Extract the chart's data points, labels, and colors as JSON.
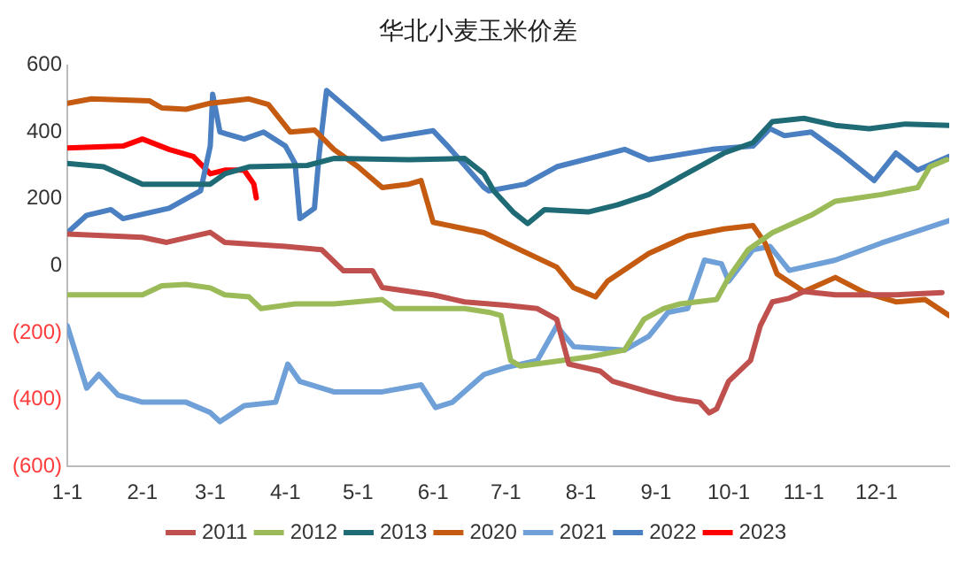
{
  "chart_data": {
    "type": "line",
    "title": "华北小麦玉米价差",
    "xlim": [
      "--01-01",
      "--12-31"
    ],
    "xticks": [
      {
        "value": "--01-01",
        "label": "1-1"
      },
      {
        "value": "--02-01",
        "label": "2-1"
      },
      {
        "value": "--03-01",
        "label": "3-1"
      },
      {
        "value": "--04-01",
        "label": "4-1"
      },
      {
        "value": "--05-01",
        "label": "5-1"
      },
      {
        "value": "--06-01",
        "label": "6-1"
      },
      {
        "value": "--07-01",
        "label": "7-1"
      },
      {
        "value": "--08-01",
        "label": "8-1"
      },
      {
        "value": "--09-01",
        "label": "9-1"
      },
      {
        "value": "--10-01",
        "label": "10-1"
      },
      {
        "value": "--11-01",
        "label": "11-1"
      },
      {
        "value": "--12-01",
        "label": "12-1"
      }
    ],
    "ylim": [
      -600,
      600
    ],
    "yticks": [
      {
        "value": -600,
        "label": "(600)"
      },
      {
        "value": -400,
        "label": "(400)"
      },
      {
        "value": -200,
        "label": "(200)"
      },
      0,
      200,
      400,
      600
    ],
    "grid": false,
    "legend": "bottom",
    "marker": "none",
    "line_style": "solid",
    "series": [
      {
        "name": "2011",
        "color": "#c0504d",
        "x": [
          "--01-01",
          "--02-01",
          "--02-11",
          "--03-01",
          "--03-07",
          "--04-01",
          "--04-16",
          "--04-25",
          "--05-07",
          "--05-11",
          "--06-01",
          "--06-14",
          "--07-01",
          "--07-14",
          "--07-22",
          "--07-27",
          "--08-09",
          "--08-14",
          "--08-29",
          "--09-09",
          "--09-19",
          "--09-23",
          "--09-26",
          "--10-01",
          "--10-10",
          "--10-14",
          "--10-19",
          "--10-26",
          "--11-01",
          "--11-14",
          "--12-09",
          "--12-28"
        ],
        "values": [
          95,
          85,
          70,
          100,
          70,
          58,
          48,
          -15,
          -15,
          -65,
          -87,
          -108,
          -118,
          -128,
          -160,
          -294,
          -315,
          -345,
          -377,
          -397,
          -408,
          -440,
          -428,
          -345,
          -283,
          -180,
          -108,
          -97,
          -77,
          -87,
          -87,
          -80
        ]
      },
      {
        "name": "2012",
        "color": "#9bbb59",
        "x": [
          "--01-01",
          "--02-01",
          "--02-09",
          "--02-19",
          "--03-01",
          "--03-07",
          "--03-17",
          "--03-22",
          "--04-05",
          "--04-21",
          "--05-11",
          "--05-16",
          "--06-14",
          "--06-24",
          "--06-29",
          "--07-03",
          "--07-07",
          "--08-04",
          "--08-19",
          "--08-27",
          "--09-04",
          "--09-11",
          "--09-26",
          "--10-01",
          "--10-09",
          "--10-19",
          "--11-04",
          "--11-14",
          "--12-03",
          "--12-18",
          "--12-23",
          "--12-30"
        ],
        "values": [
          -87,
          -87,
          -60,
          -56,
          -66,
          -87,
          -93,
          -128,
          -114,
          -114,
          -101,
          -128,
          -128,
          -139,
          -149,
          -283,
          -300,
          -273,
          -252,
          -160,
          -128,
          -114,
          -101,
          -35,
          48,
          99,
          151,
          193,
          213,
          234,
          296,
          317
        ]
      },
      {
        "name": "2013",
        "color": "#1f6b75",
        "x": [
          "--01-01",
          "--01-16",
          "--02-01",
          "--03-01",
          "--03-07",
          "--03-17",
          "--04-10",
          "--04-21",
          "--05-22",
          "--06-14",
          "--06-22",
          "--06-26",
          "--07-04",
          "--07-10",
          "--07-17",
          "--08-04",
          "--08-16",
          "--08-29",
          "--09-11",
          "--09-29",
          "--10-11",
          "--10-19",
          "--11-01",
          "--11-14",
          "--11-28",
          "--12-13",
          "--12-31"
        ],
        "values": [
          306,
          296,
          244,
          244,
          275,
          296,
          300,
          321,
          317,
          321,
          275,
          224,
          161,
          126,
          168,
          161,
          182,
          213,
          265,
          337,
          368,
          431,
          441,
          420,
          410,
          424,
          420
        ]
      },
      {
        "name": "2020",
        "color": "#c55a11",
        "x": [
          "--01-01",
          "--01-11",
          "--02-04",
          "--02-09",
          "--02-19",
          "--03-01",
          "--03-10",
          "--03-17",
          "--03-25",
          "--04-03",
          "--04-13",
          "--04-21",
          "--05-01",
          "--05-11",
          "--05-22",
          "--05-27",
          "--06-01",
          "--06-22",
          "--07-01",
          "--07-22",
          "--07-29",
          "--08-07",
          "--08-12",
          "--08-29",
          "--09-14",
          "--09-29",
          "--10-11",
          "--10-16",
          "--10-21",
          "--11-01",
          "--11-14",
          "--11-26",
          "--12-09",
          "--12-21",
          "--12-31"
        ],
        "values": [
          486,
          499,
          493,
          472,
          468,
          486,
          493,
          499,
          482,
          400,
          406,
          348,
          296,
          234,
          244,
          255,
          130,
          99,
          68,
          -4,
          -66,
          -93,
          -46,
          37,
          89,
          110,
          120,
          68,
          -25,
          -77,
          -35,
          -80,
          -108,
          -101,
          -149
        ]
      },
      {
        "name": "2021",
        "color": "#6fa0d8",
        "x": [
          "--01-01",
          "--01-09",
          "--01-14",
          "--01-22",
          "--02-01",
          "--02-19",
          "--03-01",
          "--03-05",
          "--03-15",
          "--03-28",
          "--04-02",
          "--04-07",
          "--04-21",
          "--05-11",
          "--05-27",
          "--06-02",
          "--06-09",
          "--06-22",
          "--07-01",
          "--07-14",
          "--07-22",
          "--07-29",
          "--08-19",
          "--08-29",
          "--09-06",
          "--09-14",
          "--09-21",
          "--09-28",
          "--10-01",
          "--10-11",
          "--10-18",
          "--10-26",
          "--11-14",
          "--12-03",
          "--12-31"
        ],
        "values": [
          -180,
          -366,
          -325,
          -387,
          -408,
          -408,
          -439,
          -466,
          -418,
          -408,
          -294,
          -346,
          -377,
          -377,
          -356,
          -424,
          -408,
          -325,
          -304,
          -283,
          -180,
          -242,
          -252,
          -211,
          -139,
          -128,
          17,
          6,
          -46,
          48,
          58,
          -14,
          17,
          68,
          135
        ]
      },
      {
        "name": "2022",
        "color": "#4a7fc1",
        "x": [
          "--01-01",
          "--01-09",
          "--01-19",
          "--01-24",
          "--02-12",
          "--02-25",
          "--03-01",
          "--03-02",
          "--03-05",
          "--03-15",
          "--03-23",
          "--04-01",
          "--04-05",
          "--04-07",
          "--04-13",
          "--04-15",
          "--04-18",
          "--04-28",
          "--05-11",
          "--06-01",
          "--06-07",
          "--06-22",
          "--06-24",
          "--07-09",
          "--07-22",
          "--08-19",
          "--08-29",
          "--09-24",
          "--10-11",
          "--10-18",
          "--10-24",
          "--11-04",
          "--11-16",
          "--11-30",
          "--12-09",
          "--12-18",
          "--12-31"
        ],
        "values": [
          99,
          151,
          168,
          141,
          172,
          224,
          358,
          513,
          400,
          379,
          400,
          358,
          306,
          141,
          172,
          337,
          524,
          462,
          379,
          404,
          358,
          234,
          224,
          244,
          296,
          348,
          317,
          348,
          358,
          410,
          389,
          400,
          337,
          255,
          337,
          286,
          327
        ]
      },
      {
        "name": "2023",
        "color": "#ff0000",
        "x": [
          "--01-01",
          "--01-24",
          "--02-01",
          "--02-12",
          "--02-22",
          "--03-01",
          "--03-07",
          "--03-15",
          "--03-19",
          "--03-20"
        ],
        "values": [
          352,
          358,
          379,
          348,
          327,
          275,
          286,
          286,
          244,
          203
        ]
      }
    ]
  }
}
